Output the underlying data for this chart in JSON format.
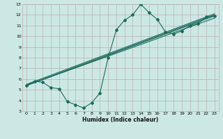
{
  "bg_color": "#cce8e4",
  "grid_color": "#b8b0b0",
  "line_color": "#1a6b5a",
  "xlabel": "Humidex (Indice chaleur)",
  "xlim": [
    -0.5,
    23.5
  ],
  "ylim": [
    3,
    13
  ],
  "xticks": [
    0,
    1,
    2,
    3,
    4,
    5,
    6,
    7,
    8,
    9,
    10,
    11,
    12,
    13,
    14,
    15,
    16,
    17,
    18,
    19,
    20,
    21,
    22,
    23
  ],
  "yticks": [
    3,
    4,
    5,
    6,
    7,
    8,
    9,
    10,
    11,
    12,
    13
  ],
  "line1_x": [
    0,
    1,
    2,
    3,
    4,
    5,
    6,
    7,
    8,
    9,
    10,
    11,
    12,
    13,
    14,
    15,
    16,
    17,
    18,
    19,
    20,
    21,
    22,
    23
  ],
  "line1_y": [
    5.4,
    5.8,
    5.7,
    5.2,
    5.1,
    3.9,
    3.6,
    3.3,
    3.8,
    4.7,
    8.0,
    10.6,
    11.5,
    12.0,
    13.0,
    12.2,
    11.6,
    10.4,
    10.2,
    10.5,
    11.0,
    11.2,
    11.8,
    11.9
  ],
  "line2_x": [
    0,
    23
  ],
  "line2_y": [
    5.4,
    11.9
  ],
  "line3_x": [
    0,
    23
  ],
  "line3_y": [
    5.4,
    11.7
  ],
  "line4_x": [
    0,
    23
  ],
  "line4_y": [
    5.4,
    12.0
  ],
  "line5_x": [
    0,
    23
  ],
  "line5_y": [
    5.5,
    12.1
  ]
}
